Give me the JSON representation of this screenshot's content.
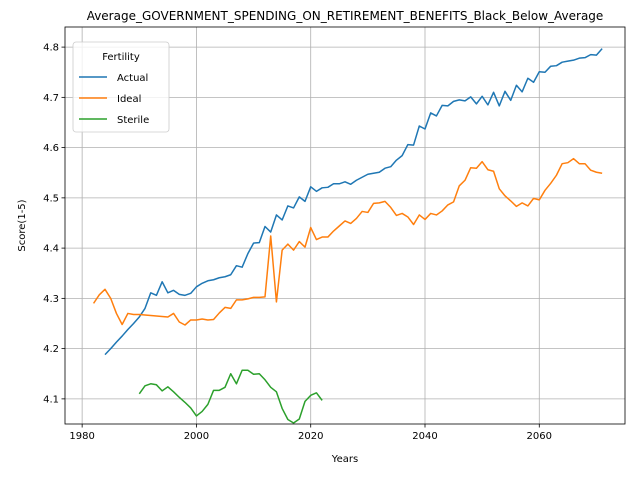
{
  "chart_data": {
    "type": "line",
    "title": "Average_GOVERNMENT_SPENDING_ON_RETIREMENT_BENEFITS_Black_Below_Average",
    "xlabel": "Years",
    "ylabel": "Score(1-5)",
    "xlim": [
      1977,
      2075
    ],
    "ylim": [
      4.05,
      4.84
    ],
    "xticks": [
      1980,
      2000,
      2020,
      2040,
      2060
    ],
    "yticks": [
      4.1,
      4.2,
      4.3,
      4.4,
      4.5,
      4.6,
      4.7,
      4.8
    ],
    "grid": true,
    "legend": {
      "title": "Fertility",
      "position": "upper-left"
    },
    "series": [
      {
        "name": "Actual",
        "color": "#1f77b4",
        "points": [
          [
            1984,
            4.188
          ],
          [
            1985,
            4.2
          ],
          [
            1986,
            4.213
          ],
          [
            1987,
            4.225
          ],
          [
            1988,
            4.238
          ],
          [
            1989,
            4.25
          ],
          [
            1990,
            4.263
          ],
          [
            1991,
            4.28
          ],
          [
            1992,
            4.311
          ],
          [
            1993,
            4.306
          ],
          [
            1994,
            4.333
          ],
          [
            1995,
            4.311
          ],
          [
            1996,
            4.316
          ],
          [
            1997,
            4.308
          ],
          [
            1998,
            4.306
          ],
          [
            1999,
            4.31
          ],
          [
            2000,
            4.323
          ],
          [
            2001,
            4.33
          ],
          [
            2002,
            4.335
          ],
          [
            2003,
            4.337
          ],
          [
            2004,
            4.341
          ],
          [
            2005,
            4.343
          ],
          [
            2006,
            4.347
          ],
          [
            2007,
            4.365
          ],
          [
            2008,
            4.362
          ],
          [
            2009,
            4.389
          ],
          [
            2010,
            4.41
          ],
          [
            2011,
            4.411
          ],
          [
            2012,
            4.443
          ],
          [
            2013,
            4.432
          ],
          [
            2014,
            4.466
          ],
          [
            2015,
            4.456
          ],
          [
            2016,
            4.484
          ],
          [
            2017,
            4.48
          ],
          [
            2018,
            4.502
          ],
          [
            2019,
            4.493
          ],
          [
            2020,
            4.522
          ],
          [
            2021,
            4.513
          ],
          [
            2022,
            4.52
          ],
          [
            2023,
            4.521
          ],
          [
            2024,
            4.528
          ],
          [
            2025,
            4.528
          ],
          [
            2026,
            4.532
          ],
          [
            2027,
            4.527
          ],
          [
            2028,
            4.535
          ],
          [
            2029,
            4.541
          ],
          [
            2030,
            4.547
          ],
          [
            2031,
            4.549
          ],
          [
            2032,
            4.551
          ],
          [
            2033,
            4.559
          ],
          [
            2034,
            4.562
          ],
          [
            2035,
            4.575
          ],
          [
            2036,
            4.584
          ],
          [
            2037,
            4.606
          ],
          [
            2038,
            4.605
          ],
          [
            2039,
            4.643
          ],
          [
            2040,
            4.637
          ],
          [
            2041,
            4.669
          ],
          [
            2042,
            4.663
          ],
          [
            2043,
            4.684
          ],
          [
            2044,
            4.683
          ],
          [
            2045,
            4.692
          ],
          [
            2046,
            4.695
          ],
          [
            2047,
            4.693
          ],
          [
            2048,
            4.701
          ],
          [
            2049,
            4.687
          ],
          [
            2050,
            4.702
          ],
          [
            2051,
            4.685
          ],
          [
            2052,
            4.71
          ],
          [
            2053,
            4.683
          ],
          [
            2054,
            4.712
          ],
          [
            2055,
            4.694
          ],
          [
            2056,
            4.724
          ],
          [
            2057,
            4.711
          ],
          [
            2058,
            4.738
          ],
          [
            2059,
            4.73
          ],
          [
            2060,
            4.751
          ],
          [
            2061,
            4.75
          ],
          [
            2062,
            4.762
          ],
          [
            2063,
            4.763
          ],
          [
            2064,
            4.77
          ],
          [
            2065,
            4.772
          ],
          [
            2066,
            4.774
          ],
          [
            2067,
            4.778
          ],
          [
            2068,
            4.779
          ],
          [
            2069,
            4.785
          ],
          [
            2070,
            4.784
          ],
          [
            2071,
            4.797
          ]
        ]
      },
      {
        "name": "Ideal",
        "color": "#ff7f0e",
        "points": [
          [
            1982,
            4.29
          ],
          [
            1983,
            4.307
          ],
          [
            1984,
            4.318
          ],
          [
            1985,
            4.3
          ],
          [
            1986,
            4.27
          ],
          [
            1987,
            4.248
          ],
          [
            1988,
            4.27
          ],
          [
            1989,
            4.268
          ],
          [
            1990,
            4.268
          ],
          [
            1991,
            4.267
          ],
          [
            1992,
            4.266
          ],
          [
            1993,
            4.265
          ],
          [
            1994,
            4.264
          ],
          [
            1995,
            4.263
          ],
          [
            1996,
            4.27
          ],
          [
            1997,
            4.253
          ],
          [
            1998,
            4.247
          ],
          [
            1999,
            4.257
          ],
          [
            2000,
            4.257
          ],
          [
            2001,
            4.259
          ],
          [
            2002,
            4.257
          ],
          [
            2003,
            4.258
          ],
          [
            2004,
            4.271
          ],
          [
            2005,
            4.282
          ],
          [
            2006,
            4.28
          ],
          [
            2007,
            4.297
          ],
          [
            2008,
            4.297
          ],
          [
            2009,
            4.299
          ],
          [
            2010,
            4.302
          ],
          [
            2011,
            4.302
          ],
          [
            2012,
            4.303
          ],
          [
            2013,
            4.424
          ],
          [
            2014,
            4.293
          ],
          [
            2015,
            4.396
          ],
          [
            2016,
            4.408
          ],
          [
            2017,
            4.396
          ],
          [
            2018,
            4.413
          ],
          [
            2019,
            4.402
          ],
          [
            2020,
            4.441
          ],
          [
            2021,
            4.417
          ],
          [
            2022,
            4.422
          ],
          [
            2023,
            4.422
          ],
          [
            2024,
            4.434
          ],
          [
            2025,
            4.444
          ],
          [
            2026,
            4.454
          ],
          [
            2027,
            4.449
          ],
          [
            2028,
            4.459
          ],
          [
            2029,
            4.473
          ],
          [
            2030,
            4.471
          ],
          [
            2031,
            4.489
          ],
          [
            2032,
            4.49
          ],
          [
            2033,
            4.493
          ],
          [
            2034,
            4.481
          ],
          [
            2035,
            4.465
          ],
          [
            2036,
            4.469
          ],
          [
            2037,
            4.462
          ],
          [
            2038,
            4.447
          ],
          [
            2039,
            4.466
          ],
          [
            2040,
            4.457
          ],
          [
            2041,
            4.469
          ],
          [
            2042,
            4.466
          ],
          [
            2043,
            4.474
          ],
          [
            2044,
            4.486
          ],
          [
            2045,
            4.492
          ],
          [
            2046,
            4.524
          ],
          [
            2047,
            4.535
          ],
          [
            2048,
            4.56
          ],
          [
            2049,
            4.559
          ],
          [
            2050,
            4.572
          ],
          [
            2051,
            4.556
          ],
          [
            2052,
            4.553
          ],
          [
            2053,
            4.518
          ],
          [
            2054,
            4.504
          ],
          [
            2055,
            4.494
          ],
          [
            2056,
            4.483
          ],
          [
            2057,
            4.49
          ],
          [
            2058,
            4.484
          ],
          [
            2059,
            4.499
          ],
          [
            2060,
            4.496
          ],
          [
            2061,
            4.515
          ],
          [
            2062,
            4.529
          ],
          [
            2063,
            4.545
          ],
          [
            2064,
            4.568
          ],
          [
            2065,
            4.57
          ],
          [
            2066,
            4.578
          ],
          [
            2067,
            4.568
          ],
          [
            2068,
            4.568
          ],
          [
            2069,
            4.555
          ],
          [
            2070,
            4.551
          ],
          [
            2071,
            4.549
          ]
        ]
      },
      {
        "name": "Sterile",
        "color": "#2ca02c",
        "points": [
          [
            1990,
            4.11
          ],
          [
            1991,
            4.126
          ],
          [
            1992,
            4.13
          ],
          [
            1993,
            4.128
          ],
          [
            1994,
            4.116
          ],
          [
            1995,
            4.124
          ],
          [
            1996,
            4.114
          ],
          [
            1997,
            4.103
          ],
          [
            1998,
            4.093
          ],
          [
            1999,
            4.082
          ],
          [
            2000,
            4.066
          ],
          [
            2001,
            4.075
          ],
          [
            2002,
            4.089
          ],
          [
            2003,
            4.117
          ],
          [
            2004,
            4.117
          ],
          [
            2005,
            4.123
          ],
          [
            2006,
            4.15
          ],
          [
            2007,
            4.13
          ],
          [
            2008,
            4.157
          ],
          [
            2009,
            4.157
          ],
          [
            2010,
            4.149
          ],
          [
            2011,
            4.15
          ],
          [
            2012,
            4.138
          ],
          [
            2013,
            4.123
          ],
          [
            2014,
            4.114
          ],
          [
            2015,
            4.081
          ],
          [
            2016,
            4.059
          ],
          [
            2017,
            4.052
          ],
          [
            2018,
            4.06
          ],
          [
            2019,
            4.095
          ],
          [
            2020,
            4.107
          ],
          [
            2021,
            4.112
          ],
          [
            2022,
            4.097
          ]
        ]
      }
    ]
  }
}
